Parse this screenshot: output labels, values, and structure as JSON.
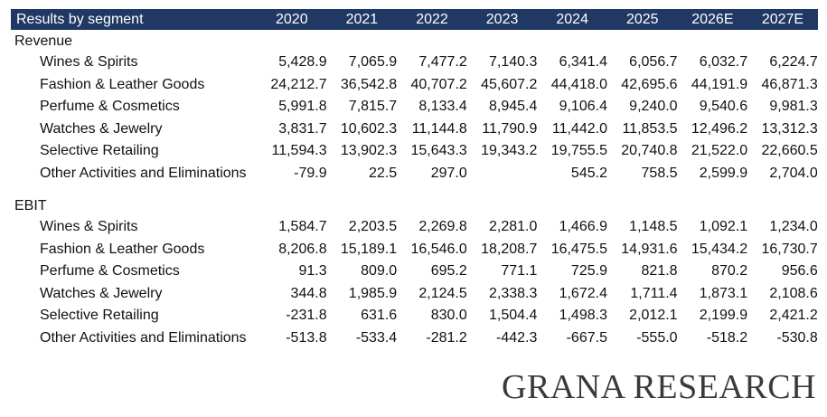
{
  "table": {
    "title": "Results by segment",
    "years": [
      "2020",
      "2021",
      "2022",
      "2023",
      "2024",
      "2025",
      "2026E",
      "2027E"
    ],
    "sections": [
      {
        "name": "Revenue",
        "rows": [
          {
            "label": "Wines & Spirits",
            "values": [
              "5,428.9",
              "7,065.9",
              "7,477.2",
              "7,140.3",
              "6,341.4",
              "6,056.7",
              "6,032.7",
              "6,224.7"
            ]
          },
          {
            "label": "Fashion & Leather Goods",
            "values": [
              "24,212.7",
              "36,542.8",
              "40,707.2",
              "45,607.2",
              "44,418.0",
              "42,695.6",
              "44,191.9",
              "46,871.3"
            ]
          },
          {
            "label": "Perfume & Cosmetics",
            "values": [
              "5,991.8",
              "7,815.7",
              "8,133.4",
              "8,945.4",
              "9,106.4",
              "9,240.0",
              "9,540.6",
              "9,981.3"
            ]
          },
          {
            "label": "Watches & Jewelry",
            "values": [
              "3,831.7",
              "10,602.3",
              "11,144.8",
              "11,790.9",
              "11,442.0",
              "11,853.5",
              "12,496.2",
              "13,312.3"
            ]
          },
          {
            "label": "Selective Retailing",
            "values": [
              "11,594.3",
              "13,902.3",
              "15,643.3",
              "19,343.2",
              "19,755.5",
              "20,740.8",
              "21,522.0",
              "22,660.5"
            ]
          },
          {
            "label": "Other Activities and Eliminations",
            "values": [
              "-79.9",
              "22.5",
              "297.0",
              "",
              "545.2",
              "758.5",
              "2,599.9",
              "2,704.0"
            ]
          }
        ]
      },
      {
        "name": "EBIT",
        "rows": [
          {
            "label": "Wines & Spirits",
            "values": [
              "1,584.7",
              "2,203.5",
              "2,269.8",
              "2,281.0",
              "1,466.9",
              "1,148.5",
              "1,092.1",
              "1,234.0"
            ]
          },
          {
            "label": "Fashion & Leather Goods",
            "values": [
              "8,206.8",
              "15,189.1",
              "16,546.0",
              "18,208.7",
              "16,475.5",
              "14,931.6",
              "15,434.2",
              "16,730.7"
            ]
          },
          {
            "label": "Perfume & Cosmetics",
            "values": [
              "91.3",
              "809.0",
              "695.2",
              "771.1",
              "725.9",
              "821.8",
              "870.2",
              "956.6"
            ]
          },
          {
            "label": "Watches & Jewelry",
            "values": [
              "344.8",
              "1,985.9",
              "2,124.5",
              "2,338.3",
              "1,672.4",
              "1,711.4",
              "1,873.1",
              "2,108.6"
            ]
          },
          {
            "label": "Selective Retailing",
            "values": [
              "-231.8",
              "631.6",
              "830.0",
              "1,504.4",
              "1,498.3",
              "2,012.1",
              "2,199.9",
              "2,421.2"
            ]
          },
          {
            "label": "Other Activities and Eliminations",
            "values": [
              "-513.8",
              "-533.4",
              "-281.2",
              "-442.3",
              "-667.5",
              "-555.0",
              "-518.2",
              "-530.8"
            ]
          }
        ]
      }
    ]
  },
  "brand": "GRANA RESEARCH",
  "colors": {
    "header_bg": "#1f3864",
    "header_text": "#ffffff"
  }
}
